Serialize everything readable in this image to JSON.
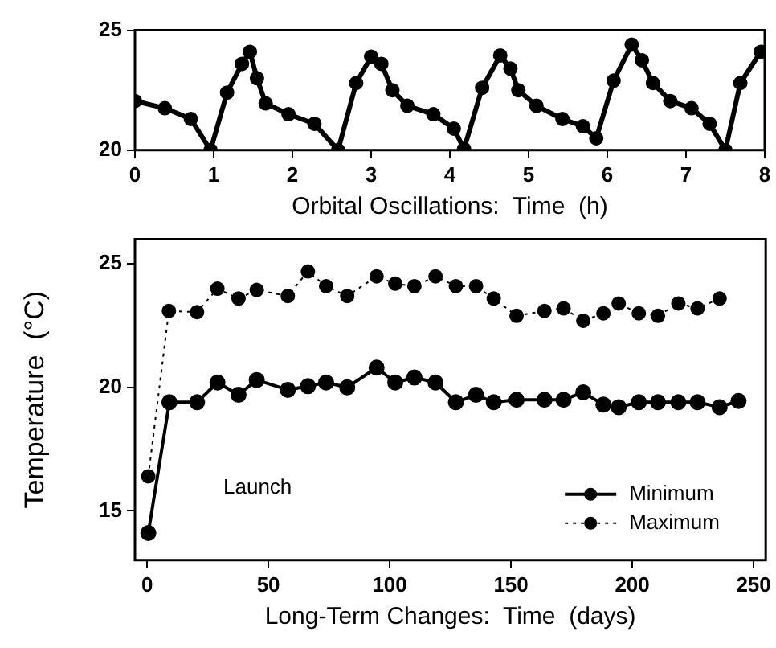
{
  "chart_data": [
    {
      "type": "line",
      "xlabel": "Orbital Oscillations:  Time  (h)",
      "xlim": [
        0,
        8
      ],
      "xticks": [
        0,
        1,
        2,
        3,
        4,
        5,
        6,
        7,
        8
      ],
      "ylim": [
        20,
        25
      ],
      "yticks": [
        20,
        25
      ],
      "grid": false,
      "legend": false,
      "marker": "circle",
      "line_style": "solid",
      "series": [
        {
          "color": "#000000",
          "x": [
            0,
            0.38,
            0.71,
            0.96,
            1.17,
            1.36,
            1.46,
            1.55,
            1.66,
            1.95,
            2.28,
            2.58,
            2.81,
            3.0,
            3.13,
            3.27,
            3.46,
            3.79,
            4.05,
            4.18,
            4.41,
            4.64,
            4.77,
            4.87,
            5.1,
            5.43,
            5.69,
            5.86,
            6.08,
            6.31,
            6.44,
            6.58,
            6.8,
            7.07,
            7.3,
            7.5,
            7.69,
            7.95
          ],
          "values": [
            22.05,
            21.75,
            21.3,
            20.0,
            22.4,
            23.6,
            24.1,
            23.0,
            21.95,
            21.5,
            21.1,
            20.0,
            22.8,
            23.9,
            23.6,
            22.5,
            21.85,
            21.5,
            20.9,
            20.05,
            22.6,
            23.95,
            23.4,
            22.5,
            21.85,
            21.3,
            21.0,
            20.5,
            22.9,
            24.4,
            23.75,
            22.8,
            22.05,
            21.75,
            21.1,
            20.0,
            22.8,
            24.1
          ]
        }
      ]
    },
    {
      "type": "line",
      "xlabel": "Long-Term Changes:  Time  (days)",
      "ylabel": "Temperature  (°C)",
      "xlim": [
        -5,
        255
      ],
      "xticks": [
        0,
        50,
        100,
        150,
        200,
        250
      ],
      "ylim": [
        13,
        26
      ],
      "yticks": [
        15,
        20,
        25
      ],
      "grid": false,
      "legend": "bottom right",
      "marker": "circle",
      "annotations": [
        "Launch"
      ],
      "series": [
        {
          "name": "Minimum",
          "color": "#000000",
          "line_style": "solid",
          "x": [
            0.5,
            9.2,
            20.6,
            29,
            37.7,
            45.2,
            58,
            66.3,
            73.8,
            82.5,
            94.6,
            102.3,
            110.2,
            118.9,
            127.3,
            135.6,
            142.9,
            152.3,
            163.8,
            171.7,
            179.8,
            188.1,
            194.4,
            202.7,
            210.6,
            219,
            226.9,
            236,
            243.8
          ],
          "values": [
            14.1,
            19.4,
            19.4,
            20.2,
            19.7,
            20.3,
            19.9,
            20.05,
            20.2,
            20.0,
            20.8,
            20.2,
            20.4,
            20.2,
            19.4,
            19.7,
            19.4,
            19.5,
            19.5,
            19.5,
            19.8,
            19.3,
            19.2,
            19.4,
            19.4,
            19.4,
            19.4,
            19.2,
            19.45
          ]
        },
        {
          "name": "Maximum",
          "color": "#000000",
          "line_style": "dotted",
          "x": [
            0.5,
            9,
            20.6,
            29,
            37.7,
            45.2,
            58,
            66.3,
            73.8,
            82.5,
            94.6,
            102.3,
            110.2,
            118.9,
            127.3,
            135.6,
            142.9,
            152.3,
            163.8,
            171.7,
            179.8,
            188.1,
            194.4,
            202.7,
            210.6,
            219,
            226.9,
            236
          ],
          "values": [
            16.4,
            23.1,
            23.05,
            24.0,
            23.6,
            23.95,
            23.7,
            24.7,
            24.1,
            23.7,
            24.5,
            24.2,
            24.1,
            24.5,
            24.1,
            24.1,
            23.6,
            22.9,
            23.1,
            23.2,
            22.7,
            23.0,
            23.4,
            23.0,
            22.9,
            23.4,
            23.2,
            23.6
          ]
        }
      ]
    }
  ]
}
